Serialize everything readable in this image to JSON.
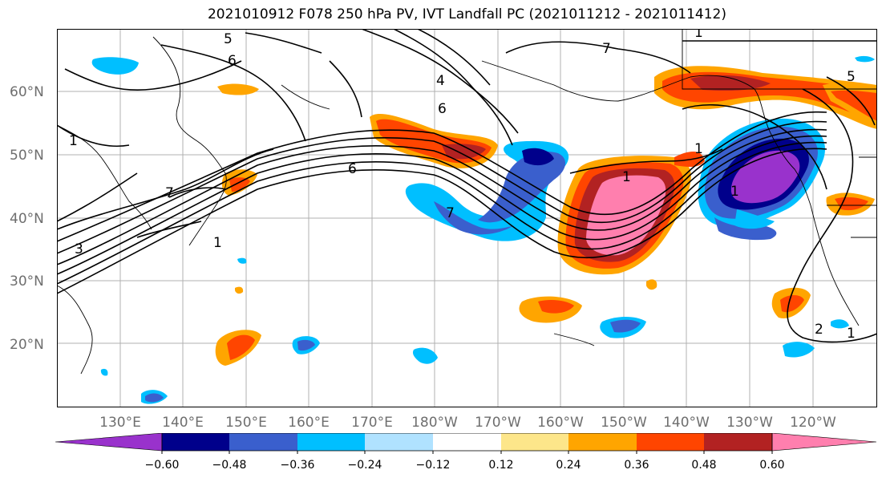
{
  "title": "2021010912 F078 250 hPa PV, IVT Landfall PC (2021011212 - 2021011412)",
  "map": {
    "lon_labels": [
      "130°E",
      "140°E",
      "150°E",
      "160°E",
      "170°E",
      "180°W",
      "170°W",
      "160°W",
      "150°W",
      "140°W",
      "130°W",
      "120°W"
    ],
    "lat_labels": [
      "60°N",
      "50°N",
      "40°N",
      "30°N",
      "20°N"
    ],
    "contour_labels": [
      "5",
      "6",
      "7",
      "4",
      "6",
      "6",
      "1",
      "1",
      "7",
      "1",
      "5",
      "7",
      "1",
      "3",
      "1",
      "1",
      "2",
      "1"
    ]
  },
  "colorbar": {
    "ticks": [
      "−0.60",
      "−0.48",
      "−0.36",
      "−0.24",
      "−0.12",
      "0.12",
      "0.24",
      "0.36",
      "0.48",
      "0.60"
    ],
    "colors": [
      "#9932cc",
      "#00008b",
      "#3a5fcd",
      "#00bfff",
      "#b0e2ff",
      "#ffffff",
      "#fde68a",
      "#ffa500",
      "#ff4500",
      "#b22222",
      "#ff7fae"
    ]
  }
}
